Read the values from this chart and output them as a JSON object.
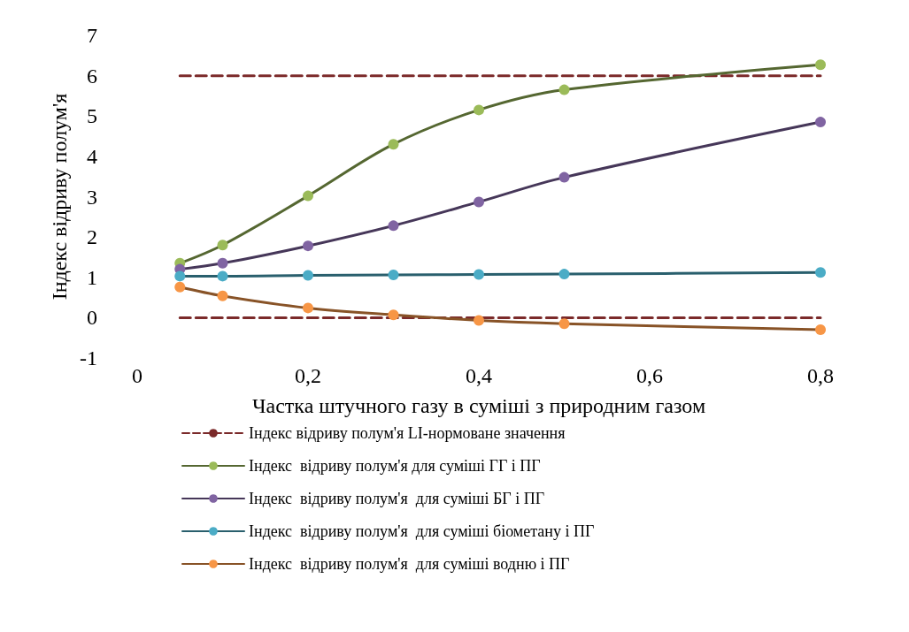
{
  "chart_data": {
    "type": "line",
    "xlabel": "Частка штучного газу в суміші з природним газом",
    "ylabel": "Індекс відриву полум'я",
    "xlim": [
      0,
      0.8
    ],
    "xticks": [
      {
        "value": 0,
        "label": "0"
      },
      {
        "value": 0.2,
        "label": "0,2"
      },
      {
        "value": 0.4,
        "label": "0,4"
      },
      {
        "value": 0.6,
        "label": "0,6"
      },
      {
        "value": 0.8,
        "label": "0,8"
      }
    ],
    "ylim": [
      -1,
      7
    ],
    "yticks": [
      -1,
      0,
      1,
      2,
      3,
      4,
      5,
      6,
      7
    ],
    "grid": false,
    "legend": "bottom",
    "marker": "circle",
    "x": [
      0.05,
      0.1,
      0.2,
      0.3,
      0.4,
      0.5,
      0.8
    ],
    "series": [
      {
        "name": "Індекс відриву полум'я LI-нормоване значення",
        "color": "#7b2a2a",
        "line_style": "dashed",
        "marker": "none",
        "values": [
          6,
          6,
          6,
          6,
          6,
          6,
          6
        ]
      },
      {
        "color": "#7b2a2a",
        "line_style": "dashed",
        "marker": "none",
        "values": [
          0,
          0,
          0,
          0,
          0,
          0,
          0
        ]
      },
      {
        "name": "Індекс  відриву полум'я для суміші ГГ і ПГ",
        "color": "#9bbb59",
        "values": [
          1.35,
          1.8,
          3.02,
          4.3,
          5.15,
          5.65,
          6.27
        ]
      },
      {
        "name": "Індекс  відриву полум'я  для суміші БГ і ПГ",
        "color": "#8064a2",
        "values": [
          1.2,
          1.35,
          1.78,
          2.28,
          2.87,
          3.48,
          4.85
        ]
      },
      {
        "name": "Індекс  відриву полум'я  для суміші біометану і ПГ",
        "color": "#4bacc6",
        "values": [
          1.03,
          1.03,
          1.05,
          1.06,
          1.07,
          1.08,
          1.12
        ]
      },
      {
        "name": "Індекс  відриву полум'я  для суміші водню і ПГ",
        "color": "#f79646",
        "values": [
          0.76,
          0.54,
          0.24,
          0.07,
          -0.07,
          -0.15,
          -0.3
        ]
      }
    ]
  }
}
